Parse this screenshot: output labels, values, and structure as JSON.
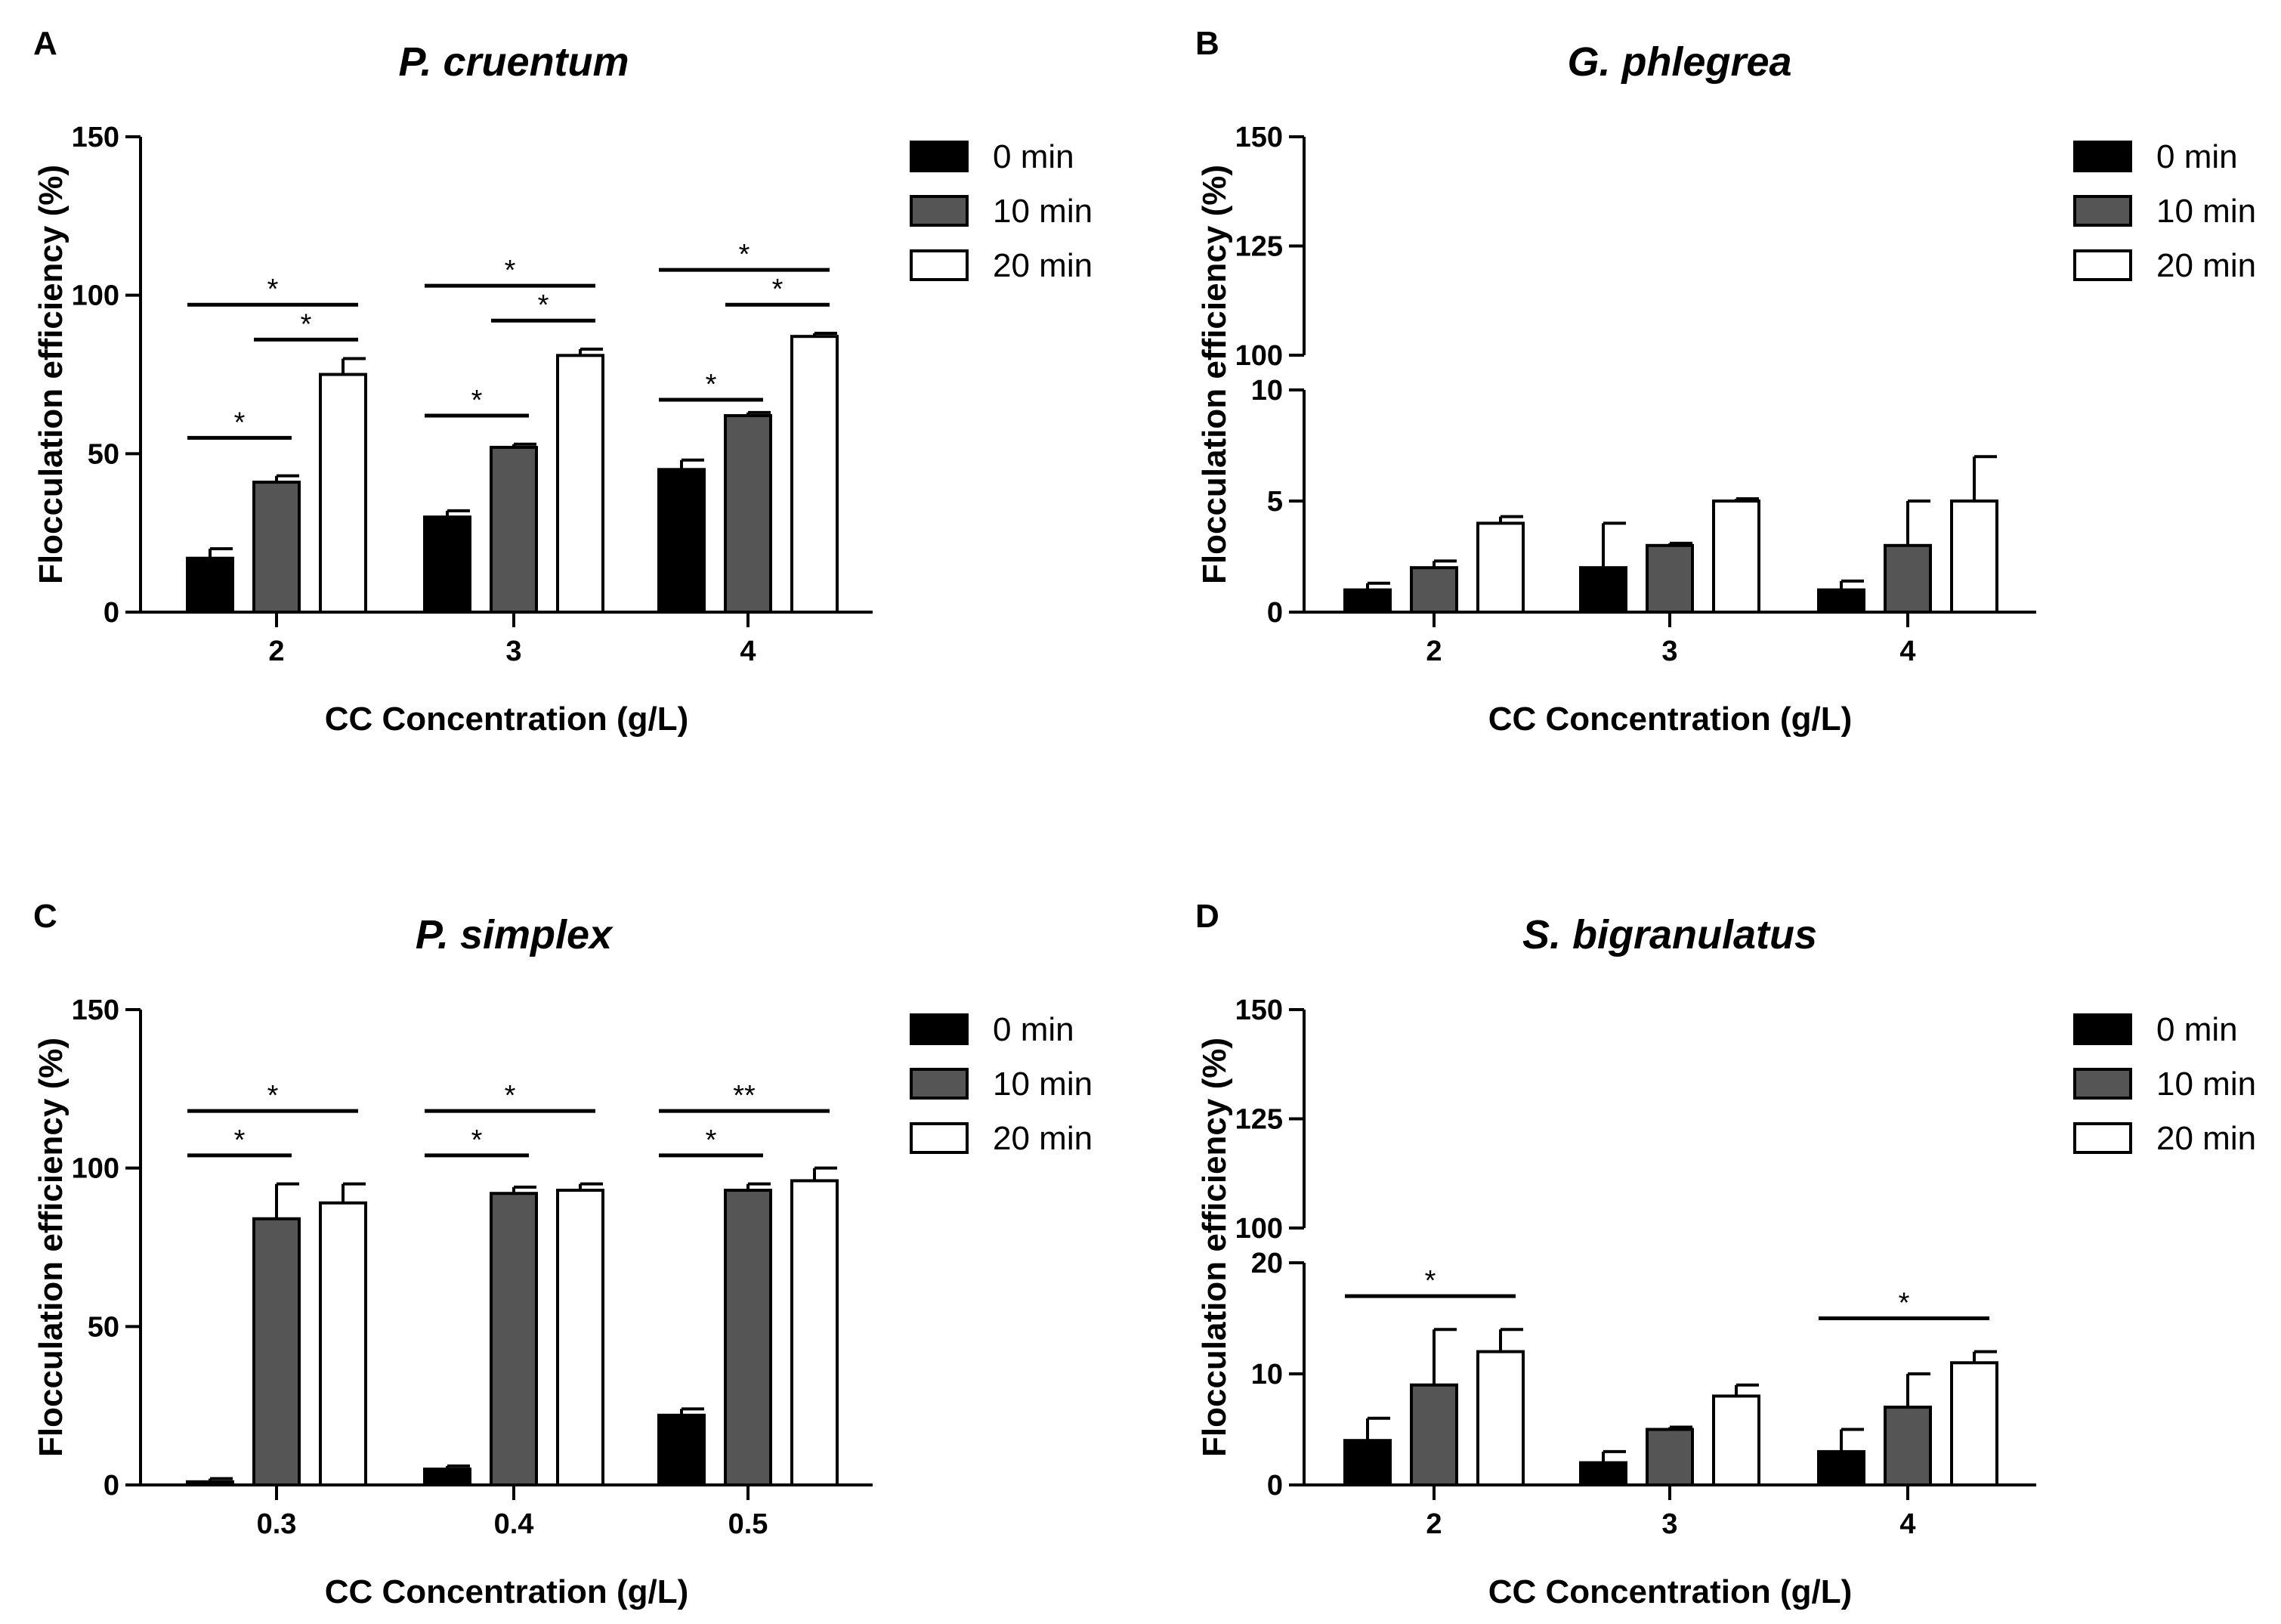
{
  "legend": {
    "entries": [
      "0 min",
      "10 min",
      "20 min"
    ],
    "colors": [
      "#000000",
      "#555555",
      "#ffffff"
    ]
  },
  "chart_data": [
    {
      "panel": "A",
      "type": "bar",
      "title": "P. cruentum",
      "xlabel": "CC Concentration (g/L)",
      "ylabel": "Flocculation efficiency (%)",
      "categories": [
        "2",
        "3",
        "4"
      ],
      "ylim": [
        0,
        150
      ],
      "yticks": [
        0,
        50,
        100,
        150
      ],
      "broken_axis": false,
      "legend_position": "top-right",
      "series": [
        {
          "name": "0 min",
          "values": [
            17,
            30,
            45
          ],
          "errors": [
            3,
            2,
            3
          ]
        },
        {
          "name": "10 min",
          "values": [
            41,
            52,
            62
          ],
          "errors": [
            2,
            1,
            1
          ]
        },
        {
          "name": "20 min",
          "values": [
            75,
            81,
            87
          ],
          "errors": [
            5,
            2,
            1
          ]
        }
      ],
      "significance": [
        {
          "category": 0,
          "from": 0,
          "to": 1,
          "level": 55,
          "label": "*"
        },
        {
          "category": 0,
          "from": 1,
          "to": 2,
          "level": 86,
          "label": "*"
        },
        {
          "category": 0,
          "from": 0,
          "to": 2,
          "level": 97,
          "label": "*"
        },
        {
          "category": 1,
          "from": 0,
          "to": 1,
          "level": 62,
          "label": "*"
        },
        {
          "category": 1,
          "from": 1,
          "to": 2,
          "level": 92,
          "label": "*"
        },
        {
          "category": 1,
          "from": 0,
          "to": 2,
          "level": 103,
          "label": "*"
        },
        {
          "category": 2,
          "from": 0,
          "to": 1,
          "level": 67,
          "label": "*"
        },
        {
          "category": 2,
          "from": 1,
          "to": 2,
          "level": 97,
          "label": "*"
        },
        {
          "category": 2,
          "from": 0,
          "to": 2,
          "level": 108,
          "label": "*"
        }
      ]
    },
    {
      "panel": "B",
      "type": "bar",
      "title": "G. phlegrea",
      "xlabel": "CC Concentration (g/L)",
      "ylabel": "Flocculation efficiency (%)",
      "categories": [
        "2",
        "3",
        "4"
      ],
      "broken_axis": true,
      "lower_range": [
        0,
        10
      ],
      "lower_ticks": [
        0,
        5,
        10
      ],
      "upper_range": [
        100,
        150
      ],
      "upper_ticks": [
        100,
        125,
        150
      ],
      "legend_position": "top-right",
      "series": [
        {
          "name": "0 min",
          "values": [
            1,
            2,
            1
          ],
          "errors": [
            0.3,
            2,
            0.4
          ]
        },
        {
          "name": "10 min",
          "values": [
            2,
            3,
            3
          ],
          "errors": [
            0.3,
            0.1,
            2
          ]
        },
        {
          "name": "20 min",
          "values": [
            4,
            5,
            5
          ],
          "errors": [
            0.3,
            0.1,
            2
          ]
        }
      ],
      "significance": []
    },
    {
      "panel": "C",
      "type": "bar",
      "title": "P. simplex",
      "xlabel": "CC Concentration (g/L)",
      "ylabel": "Flocculation efficiency (%)",
      "categories": [
        "0.3",
        "0.4",
        "0.5"
      ],
      "ylim": [
        0,
        150
      ],
      "yticks": [
        0,
        50,
        100,
        150
      ],
      "broken_axis": false,
      "legend_position": "top-right",
      "series": [
        {
          "name": "0 min",
          "values": [
            1,
            5,
            22
          ],
          "errors": [
            1,
            1,
            2
          ]
        },
        {
          "name": "10 min",
          "values": [
            84,
            92,
            93
          ],
          "errors": [
            11,
            2,
            2
          ]
        },
        {
          "name": "20 min",
          "values": [
            89,
            93,
            96
          ],
          "errors": [
            6,
            2,
            4
          ]
        }
      ],
      "significance": [
        {
          "category": 0,
          "from": 0,
          "to": 1,
          "level": 104,
          "label": "*"
        },
        {
          "category": 0,
          "from": 0,
          "to": 2,
          "level": 118,
          "label": "*"
        },
        {
          "category": 1,
          "from": 0,
          "to": 1,
          "level": 104,
          "label": "*"
        },
        {
          "category": 1,
          "from": 0,
          "to": 2,
          "level": 118,
          "label": "*"
        },
        {
          "category": 2,
          "from": 0,
          "to": 1,
          "level": 104,
          "label": "*"
        },
        {
          "category": 2,
          "from": 0,
          "to": 2,
          "level": 118,
          "label": "**"
        }
      ]
    },
    {
      "panel": "D",
      "type": "bar",
      "title": "S. bigranulatus",
      "xlabel": "CC Concentration (g/L)",
      "ylabel": "Flocculation efficiency (%)",
      "categories": [
        "2",
        "3",
        "4"
      ],
      "broken_axis": true,
      "lower_range": [
        0,
        20
      ],
      "lower_ticks": [
        0,
        10,
        20
      ],
      "upper_range": [
        100,
        150
      ],
      "upper_ticks": [
        100,
        125,
        150
      ],
      "legend_position": "top-right",
      "series": [
        {
          "name": "0 min",
          "values": [
            4,
            2,
            3
          ],
          "errors": [
            2,
            1,
            2
          ]
        },
        {
          "name": "10 min",
          "values": [
            9,
            5,
            7
          ],
          "errors": [
            5,
            0.2,
            3
          ]
        },
        {
          "name": "20 min",
          "values": [
            12,
            8,
            11
          ],
          "errors": [
            2,
            1,
            1
          ]
        }
      ],
      "significance": [
        {
          "category": 0,
          "from": 0,
          "to": 2,
          "level": 17,
          "label": "*"
        },
        {
          "category": 2,
          "from": 0,
          "to": 2,
          "level": 15,
          "label": "*"
        }
      ]
    }
  ]
}
